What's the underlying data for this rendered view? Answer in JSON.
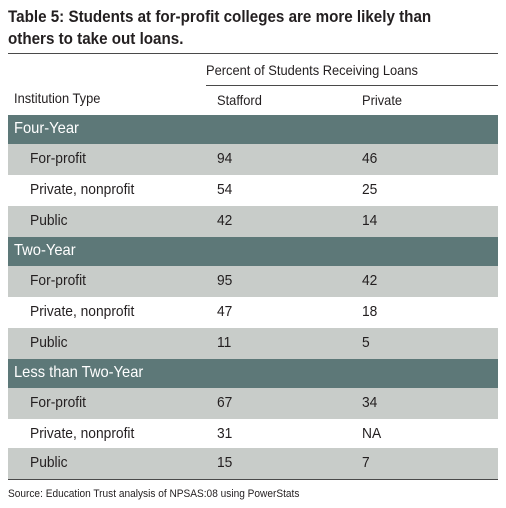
{
  "title": "Table 5: Students at for-profit colleges are more likely than others to take out loans.",
  "group_header": "Percent of Students Receiving Loans",
  "columns": {
    "institution": "Institution Type",
    "stafford": "Stafford",
    "private": "Private"
  },
  "sections": [
    {
      "label": "Four-Year",
      "rows": [
        {
          "type": "For-profit",
          "stafford": "94",
          "private": "46"
        },
        {
          "type": "Private, nonprofit",
          "stafford": "54",
          "private": "25"
        },
        {
          "type": "Public",
          "stafford": "42",
          "private": "14"
        }
      ]
    },
    {
      "label": "Two-Year",
      "rows": [
        {
          "type": "For-profit",
          "stafford": "95",
          "private": "42"
        },
        {
          "type": "Private, nonprofit",
          "stafford": "47",
          "private": "18"
        },
        {
          "type": "Public",
          "stafford": "11",
          "private": "5"
        }
      ]
    },
    {
      "label": "Less than Two-Year",
      "rows": [
        {
          "type": "For-profit",
          "stafford": "67",
          "private": "34"
        },
        {
          "type": "Private, nonprofit",
          "stafford": "31",
          "private": "NA"
        },
        {
          "type": "Public",
          "stafford": "15",
          "private": "7"
        }
      ]
    }
  ],
  "source": "Source: Education Trust analysis of NPSAS:08 using PowerStats",
  "colors": {
    "section_band": "#5d7878",
    "shaded_row": "#c8ccc9",
    "text": "#231f20"
  }
}
